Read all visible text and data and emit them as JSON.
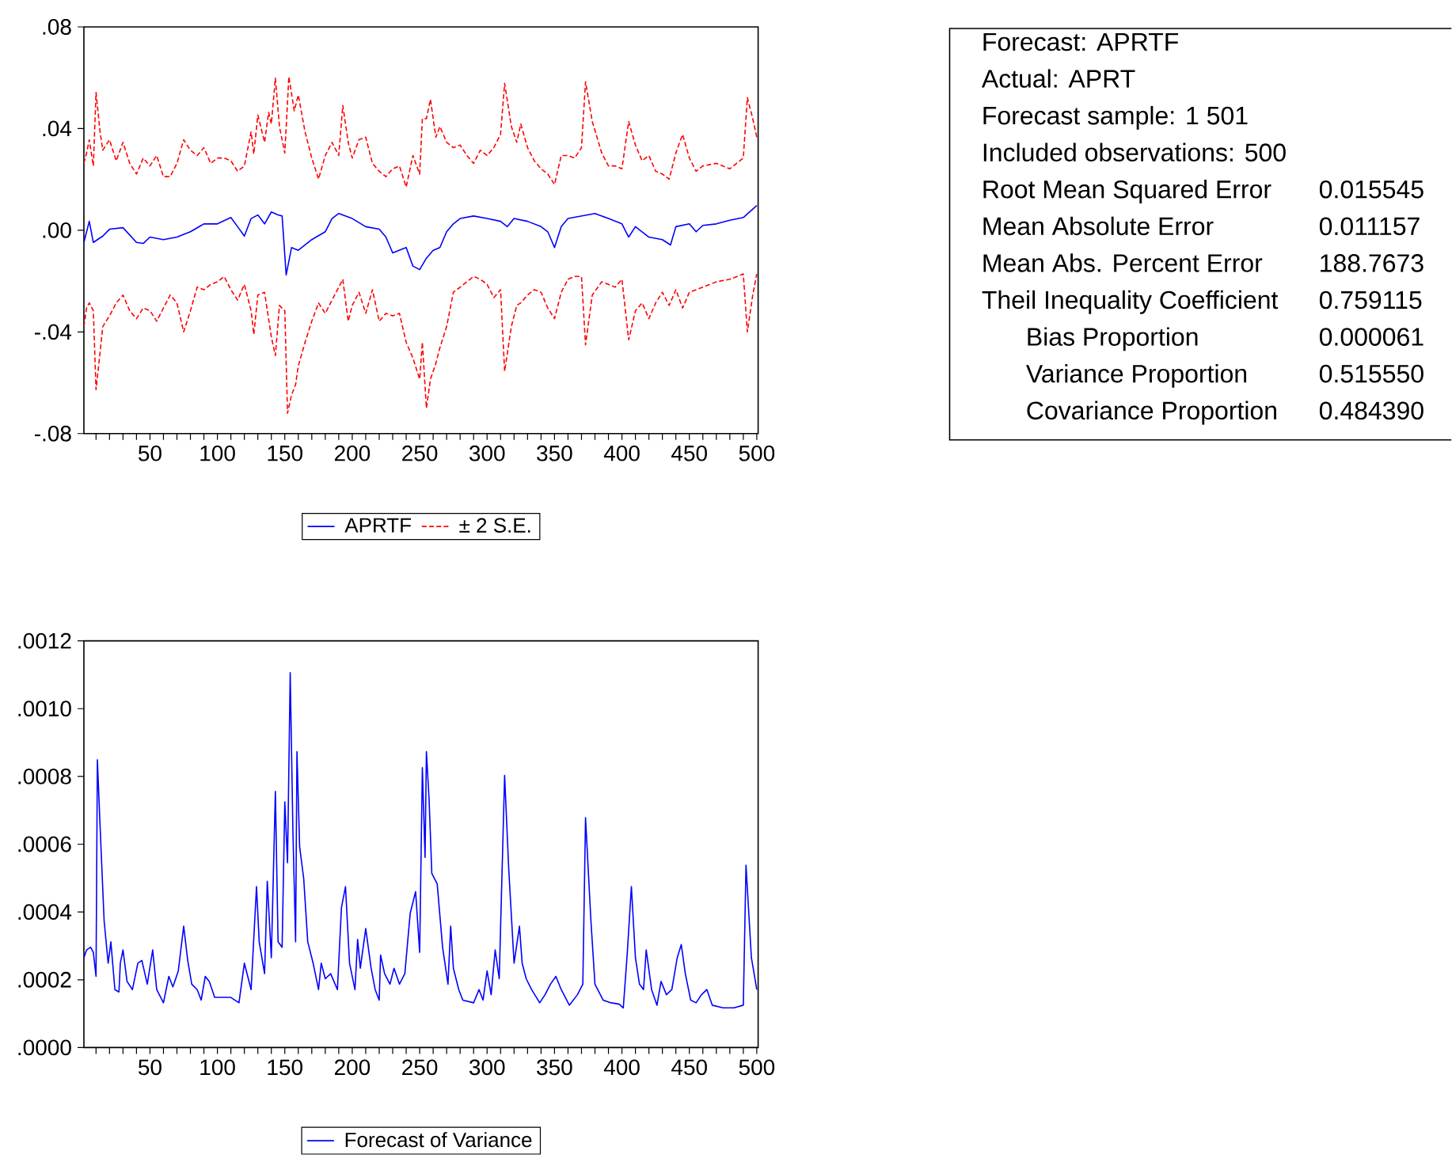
{
  "chart_data": [
    {
      "type": "line",
      "xlim": [
        1,
        501
      ],
      "ylim": [
        -0.08,
        0.08
      ],
      "xticks": [
        {
          "value": 10,
          "label": null
        },
        {
          "value": 20,
          "label": null
        },
        {
          "value": 30,
          "label": null
        },
        {
          "value": 40,
          "label": null
        },
        50,
        {
          "value": 60,
          "label": null
        },
        {
          "value": 70,
          "label": null
        },
        {
          "value": 80,
          "label": null
        },
        {
          "value": 90,
          "label": null
        },
        100,
        {
          "value": 110,
          "label": null
        },
        {
          "value": 120,
          "label": null
        },
        {
          "value": 130,
          "label": null
        },
        {
          "value": 140,
          "label": null
        },
        150,
        {
          "value": 160,
          "label": null
        },
        {
          "value": 170,
          "label": null
        },
        {
          "value": 180,
          "label": null
        },
        {
          "value": 190,
          "label": null
        },
        200,
        {
          "value": 210,
          "label": null
        },
        {
          "value": 220,
          "label": null
        },
        {
          "value": 230,
          "label": null
        },
        {
          "value": 240,
          "label": null
        },
        250,
        {
          "value": 260,
          "label": null
        },
        {
          "value": 270,
          "label": null
        },
        {
          "value": 280,
          "label": null
        },
        {
          "value": 290,
          "label": null
        },
        300,
        {
          "value": 310,
          "label": null
        },
        {
          "value": 320,
          "label": null
        },
        {
          "value": 330,
          "label": null
        },
        {
          "value": 340,
          "label": null
        },
        350,
        {
          "value": 360,
          "label": null
        },
        {
          "value": 370,
          "label": null
        },
        {
          "value": 380,
          "label": null
        },
        {
          "value": 390,
          "label": null
        },
        400,
        {
          "value": 410,
          "label": null
        },
        {
          "value": 420,
          "label": null
        },
        {
          "value": 430,
          "label": null
        },
        {
          "value": 440,
          "label": null
        },
        450,
        {
          "value": 460,
          "label": null
        },
        {
          "value": 470,
          "label": null
        },
        {
          "value": 480,
          "label": null
        },
        {
          "value": 490,
          "label": null
        },
        500
      ],
      "yticks": [
        {
          "value": -0.08,
          "label": "-.08"
        },
        {
          "value": -0.04,
          "label": "-.04"
        },
        {
          "value": 0,
          "label": ".00"
        },
        {
          "value": 0.04,
          "label": ".04"
        },
        {
          "value": 0.08,
          "label": ".08"
        }
      ],
      "legend": "bottom",
      "series": [
        {
          "name": "APRTF",
          "color": "#0000ff",
          "line_style": "solid",
          "x": [
            1,
            5,
            8,
            15,
            20,
            30,
            40,
            45,
            50,
            60,
            70,
            80,
            90,
            100,
            110,
            115,
            120,
            125,
            130,
            135,
            140,
            145,
            148,
            151,
            155,
            160,
            170,
            180,
            185,
            190,
            200,
            210,
            220,
            225,
            230,
            240,
            245,
            250,
            255,
            260,
            265,
            270,
            275,
            280,
            290,
            300,
            310,
            315,
            320,
            330,
            340,
            345,
            350,
            355,
            360,
            370,
            380,
            390,
            400,
            405,
            410,
            420,
            430,
            436,
            440,
            450,
            455,
            460,
            470,
            480,
            490,
            500
          ],
          "values": [
            -0.0048,
            0.0035,
            -0.0048,
            -0.0023,
            0.0004,
            0.001,
            -0.0048,
            -0.0052,
            -0.0027,
            -0.0037,
            -0.0027,
            -0.0006,
            0.0025,
            0.0025,
            0.005,
            0.0014,
            -0.0023,
            0.0046,
            0.006,
            0.0025,
            0.0072,
            0.006,
            0.0056,
            -0.0176,
            -0.0068,
            -0.0079,
            -0.0037,
            -0.0006,
            0.0046,
            0.0066,
            0.0046,
            0.0014,
            0.0004,
            -0.0027,
            -0.0089,
            -0.0068,
            -0.0141,
            -0.0155,
            -0.011,
            -0.0079,
            -0.0068,
            -0.0006,
            0.0025,
            0.0046,
            0.0056,
            0.0046,
            0.0035,
            0.0014,
            0.0046,
            0.0035,
            0.0014,
            -0.0006,
            -0.0068,
            0.0014,
            0.0046,
            0.0056,
            0.0066,
            0.0046,
            0.0025,
            -0.0027,
            0.0014,
            -0.0027,
            -0.0037,
            -0.0058,
            0.0014,
            0.0025,
            -0.0006,
            0.0019,
            0.0025,
            0.0039,
            0.005,
            0.0097
          ]
        },
        {
          "name": "± 2 S.E.",
          "color": "#ff0000",
          "line_style": "dashed",
          "x": [
            1,
            3,
            5,
            8,
            10,
            13,
            15,
            20,
            25,
            30,
            35,
            40,
            45,
            50,
            55,
            60,
            65,
            70,
            75,
            80,
            85,
            90,
            95,
            100,
            105,
            110,
            115,
            120,
            125,
            127,
            130,
            135,
            138,
            140,
            143,
            146,
            150,
            153,
            157,
            160,
            165,
            170,
            175,
            180,
            185,
            190,
            193,
            197,
            200,
            205,
            210,
            215,
            220,
            225,
            230,
            235,
            240,
            245,
            250,
            252,
            255,
            258,
            262,
            265,
            270,
            275,
            280,
            285,
            290,
            295,
            300,
            305,
            310,
            313,
            318,
            322,
            325,
            330,
            335,
            340,
            345,
            350,
            355,
            360,
            365,
            370,
            373,
            378,
            385,
            390,
            395,
            400,
            405,
            410,
            415,
            420,
            425,
            430,
            435,
            440,
            445,
            450,
            455,
            460,
            470,
            480,
            490,
            493,
            497,
            500
          ],
          "values": [
            0.0263,
            0.0304,
            0.0356,
            0.0253,
            0.0542,
            0.0387,
            0.0315,
            0.0356,
            0.0273,
            0.0346,
            0.0263,
            0.0221,
            0.0284,
            0.0253,
            0.0294,
            0.0211,
            0.0211,
            0.0263,
            0.0356,
            0.0315,
            0.0294,
            0.0325,
            0.0263,
            0.0284,
            0.0284,
            0.0273,
            0.0232,
            0.0253,
            0.0387,
            0.03,
            0.0453,
            0.0346,
            0.0464,
            0.0418,
            0.0598,
            0.0408,
            0.0304,
            0.0604,
            0.047,
            0.0532,
            0.0387,
            0.0284,
            0.0201,
            0.0294,
            0.0346,
            0.0294,
            0.0491,
            0.0346,
            0.0284,
            0.0356,
            0.0366,
            0.0263,
            0.0232,
            0.0211,
            0.0242,
            0.0253,
            0.017,
            0.0294,
            0.0221,
            0.0439,
            0.0439,
            0.0515,
            0.0366,
            0.0408,
            0.0346,
            0.0325,
            0.0335,
            0.0294,
            0.0263,
            0.0315,
            0.0294,
            0.0325,
            0.0377,
            0.0578,
            0.0408,
            0.0346,
            0.0418,
            0.0325,
            0.0273,
            0.0242,
            0.0221,
            0.018,
            0.0294,
            0.0294,
            0.0284,
            0.0325,
            0.0584,
            0.0428,
            0.0304,
            0.0253,
            0.0253,
            0.0242,
            0.0428,
            0.0335,
            0.0273,
            0.0294,
            0.0232,
            0.0221,
            0.0201,
            0.0304,
            0.0377,
            0.0284,
            0.0232,
            0.0253,
            0.0263,
            0.0242,
            0.0284,
            0.0522,
            0.0439,
            0.0366
          ]
        },
        {
          "color": "#ff0000",
          "line_style": "dashed",
          "x": [
            1,
            3,
            5,
            8,
            10,
            13,
            15,
            20,
            25,
            30,
            35,
            40,
            45,
            50,
            55,
            60,
            65,
            70,
            75,
            80,
            85,
            90,
            95,
            100,
            105,
            110,
            115,
            120,
            125,
            127,
            130,
            135,
            140,
            143,
            146,
            150,
            152,
            155,
            158,
            160,
            165,
            170,
            175,
            180,
            185,
            190,
            193,
            197,
            200,
            205,
            210,
            215,
            220,
            225,
            230,
            235,
            240,
            245,
            250,
            252,
            255,
            258,
            262,
            265,
            270,
            275,
            280,
            285,
            290,
            295,
            300,
            305,
            310,
            313,
            318,
            322,
            325,
            330,
            335,
            340,
            345,
            350,
            355,
            360,
            365,
            370,
            373,
            378,
            385,
            390,
            395,
            400,
            405,
            410,
            415,
            420,
            425,
            430,
            435,
            440,
            445,
            450,
            455,
            460,
            470,
            480,
            490,
            493,
            497,
            500
          ],
          "values": [
            -0.0379,
            -0.0306,
            -0.0286,
            -0.0317,
            -0.0627,
            -0.0482,
            -0.0379,
            -0.0337,
            -0.0286,
            -0.0255,
            -0.0317,
            -0.0348,
            -0.0306,
            -0.0317,
            -0.0358,
            -0.0306,
            -0.0255,
            -0.0286,
            -0.04,
            -0.0317,
            -0.0224,
            -0.0234,
            -0.0213,
            -0.0203,
            -0.0182,
            -0.0234,
            -0.0275,
            -0.0213,
            -0.0317,
            -0.041,
            -0.0255,
            -0.0244,
            -0.042,
            -0.0493,
            -0.0296,
            -0.0317,
            -0.072,
            -0.0648,
            -0.0607,
            -0.0534,
            -0.0441,
            -0.0358,
            -0.0286,
            -0.0327,
            -0.0275,
            -0.0224,
            -0.0193,
            -0.0358,
            -0.0296,
            -0.0244,
            -0.0327,
            -0.0234,
            -0.0358,
            -0.0327,
            -0.0337,
            -0.0327,
            -0.0441,
            -0.0503,
            -0.0586,
            -0.0441,
            -0.07,
            -0.0586,
            -0.0524,
            -0.0462,
            -0.0379,
            -0.0244,
            -0.0224,
            -0.0203,
            -0.0182,
            -0.0193,
            -0.0213,
            -0.0265,
            -0.0234,
            -0.0555,
            -0.0379,
            -0.0296,
            -0.0286,
            -0.0255,
            -0.0234,
            -0.0244,
            -0.0306,
            -0.0348,
            -0.0244,
            -0.0193,
            -0.0182,
            -0.0182,
            -0.0451,
            -0.0255,
            -0.0203,
            -0.0213,
            -0.0224,
            -0.0193,
            -0.0431,
            -0.0317,
            -0.0286,
            -0.0348,
            -0.0286,
            -0.0244,
            -0.0296,
            -0.0234,
            -0.0306,
            -0.0244,
            -0.0234,
            -0.0224,
            -0.0203,
            -0.0193,
            -0.0172,
            -0.04,
            -0.0255,
            -0.0172
          ]
        }
      ]
    },
    {
      "type": "other",
      "annotations": [
        "Forecast: APRTF",
        "Actual: APRT",
        "Forecast sample: 1 501",
        "Included observations: 500",
        "Root Mean Squared Error",
        "0.015545",
        "Mean Absolute Error",
        "0.011157",
        "Mean Abs. Percent Error",
        "188.7673",
        "Theil Inequality Coefficient",
        "0.759115",
        "Bias Proportion",
        "0.000061",
        "Variance Proportion",
        "0.515550",
        "Covariance Proportion",
        "0.484390"
      ]
    },
    {
      "type": "line",
      "xlim": [
        1,
        501
      ],
      "ylim": [
        0,
        0.0012
      ],
      "xticks": [
        {
          "value": 10,
          "label": null
        },
        {
          "value": 20,
          "label": null
        },
        {
          "value": 30,
          "label": null
        },
        {
          "value": 40,
          "label": null
        },
        50,
        {
          "value": 60,
          "label": null
        },
        {
          "value": 70,
          "label": null
        },
        {
          "value": 80,
          "label": null
        },
        {
          "value": 90,
          "label": null
        },
        100,
        {
          "value": 110,
          "label": null
        },
        {
          "value": 120,
          "label": null
        },
        {
          "value": 130,
          "label": null
        },
        {
          "value": 140,
          "label": null
        },
        150,
        {
          "value": 160,
          "label": null
        },
        {
          "value": 170,
          "label": null
        },
        {
          "value": 180,
          "label": null
        },
        {
          "value": 190,
          "label": null
        },
        200,
        {
          "value": 210,
          "label": null
        },
        {
          "value": 220,
          "label": null
        },
        {
          "value": 230,
          "label": null
        },
        {
          "value": 240,
          "label": null
        },
        250,
        {
          "value": 260,
          "label": null
        },
        {
          "value": 270,
          "label": null
        },
        {
          "value": 280,
          "label": null
        },
        {
          "value": 290,
          "label": null
        },
        300,
        {
          "value": 310,
          "label": null
        },
        {
          "value": 320,
          "label": null
        },
        {
          "value": 330,
          "label": null
        },
        {
          "value": 340,
          "label": null
        },
        350,
        {
          "value": 360,
          "label": null
        },
        {
          "value": 370,
          "label": null
        },
        {
          "value": 380,
          "label": null
        },
        {
          "value": 390,
          "label": null
        },
        400,
        {
          "value": 410,
          "label": null
        },
        {
          "value": 420,
          "label": null
        },
        {
          "value": 430,
          "label": null
        },
        {
          "value": 440,
          "label": null
        },
        450,
        {
          "value": 460,
          "label": null
        },
        {
          "value": 470,
          "label": null
        },
        {
          "value": 480,
          "label": null
        },
        {
          "value": 490,
          "label": null
        },
        500
      ],
      "yticks": [
        {
          "value": 0,
          "label": ".0000"
        },
        {
          "value": 0.0002,
          "label": ".0002"
        },
        {
          "value": 0.0004,
          "label": ".0004"
        },
        {
          "value": 0.0006,
          "label": ".0006"
        },
        {
          "value": 0.0008,
          "label": ".0008"
        },
        {
          "value": 0.001,
          "label": ".0010"
        },
        {
          "value": 0.0012,
          "label": ".0012"
        }
      ],
      "legend": "bottom",
      "series": [
        {
          "name": "Forecast of Variance",
          "color": "#0000ff",
          "line_style": "solid",
          "x": [
            1,
            3,
            6,
            8,
            10,
            11,
            13,
            16,
            19,
            21,
            24,
            27,
            28,
            30,
            33,
            37,
            41,
            44,
            48,
            52,
            55,
            60,
            64,
            67,
            71,
            75,
            78,
            81,
            85,
            88,
            91,
            94,
            98,
            100,
            110,
            116,
            120,
            125,
            129,
            131,
            135,
            137,
            140,
            143,
            145,
            148,
            150,
            152,
            154,
            156,
            158,
            159,
            161,
            164,
            167,
            171,
            175,
            177,
            180,
            184,
            189,
            192,
            195,
            198,
            202,
            204,
            206,
            210,
            214,
            217,
            220,
            221,
            224,
            228,
            231,
            235,
            239,
            243,
            247,
            250,
            252,
            254,
            255,
            257,
            259,
            263,
            267,
            271,
            273,
            275,
            279,
            282,
            290,
            294,
            297,
            300,
            303,
            306,
            309,
            313,
            316,
            320,
            324,
            326,
            329,
            333,
            339,
            343,
            347,
            351,
            355,
            361,
            367,
            371,
            373,
            377,
            380,
            386,
            392,
            398,
            401,
            404,
            407,
            410,
            413,
            416,
            418,
            422,
            426,
            429,
            433,
            437,
            441,
            444,
            447,
            451,
            455,
            459,
            463,
            467,
            475,
            483,
            490,
            492,
            496,
            500
          ],
          "values": [
            0.000265,
            0.000288,
            0.000296,
            0.000281,
            0.00021,
            0.000849,
            0.000655,
            0.000374,
            0.000249,
            0.000312,
            0.000171,
            0.000164,
            0.000249,
            0.000288,
            0.000195,
            0.000171,
            0.000249,
            0.000257,
            0.000187,
            0.000288,
            0.000171,
            0.000132,
            0.00021,
            0.000179,
            0.000226,
            0.000358,
            0.000257,
            0.000187,
            0.000171,
            0.00014,
            0.00021,
            0.000195,
            0.000148,
            0.000148,
            0.000148,
            0.000132,
            0.000249,
            0.000171,
            0.000475,
            0.000312,
            0.000218,
            0.000491,
            0.000265,
            0.000756,
            0.000312,
            0.000296,
            0.000725,
            0.000545,
            0.001106,
            0.000639,
            0.000312,
            0.000873,
            0.000592,
            0.000499,
            0.000312,
            0.000249,
            0.000171,
            0.000249,
            0.000203,
            0.000218,
            0.000171,
            0.000413,
            0.000475,
            0.000249,
            0.000171,
            0.000319,
            0.000234,
            0.000351,
            0.000234,
            0.000171,
            0.00014,
            0.000273,
            0.000218,
            0.000187,
            0.000234,
            0.000187,
            0.000218,
            0.000397,
            0.00046,
            0.000281,
            0.000826,
            0.000561,
            0.000873,
            0.000732,
            0.000514,
            0.000483,
            0.000296,
            0.000187,
            0.000358,
            0.000234,
            0.000171,
            0.00014,
            0.000132,
            0.000171,
            0.00014,
            0.000226,
            0.000156,
            0.000288,
            0.000203,
            0.000803,
            0.00053,
            0.000249,
            0.000358,
            0.000249,
            0.000203,
            0.000171,
            0.000132,
            0.000156,
            0.000187,
            0.00021,
            0.000171,
            0.000125,
            0.000156,
            0.000187,
            0.000678,
            0.000374,
            0.000187,
            0.00014,
            0.000132,
            0.000128,
            0.000117,
            0.000281,
            0.000475,
            0.000265,
            0.000187,
            0.000171,
            0.000288,
            0.000171,
            0.000125,
            0.000195,
            0.000156,
            0.000171,
            0.000265,
            0.000304,
            0.000218,
            0.00014,
            0.000132,
            0.000156,
            0.000171,
            0.000125,
            0.000117,
            0.000117,
            0.000125,
            0.000538,
            0.000265,
            0.000171
          ]
        }
      ]
    }
  ]
}
